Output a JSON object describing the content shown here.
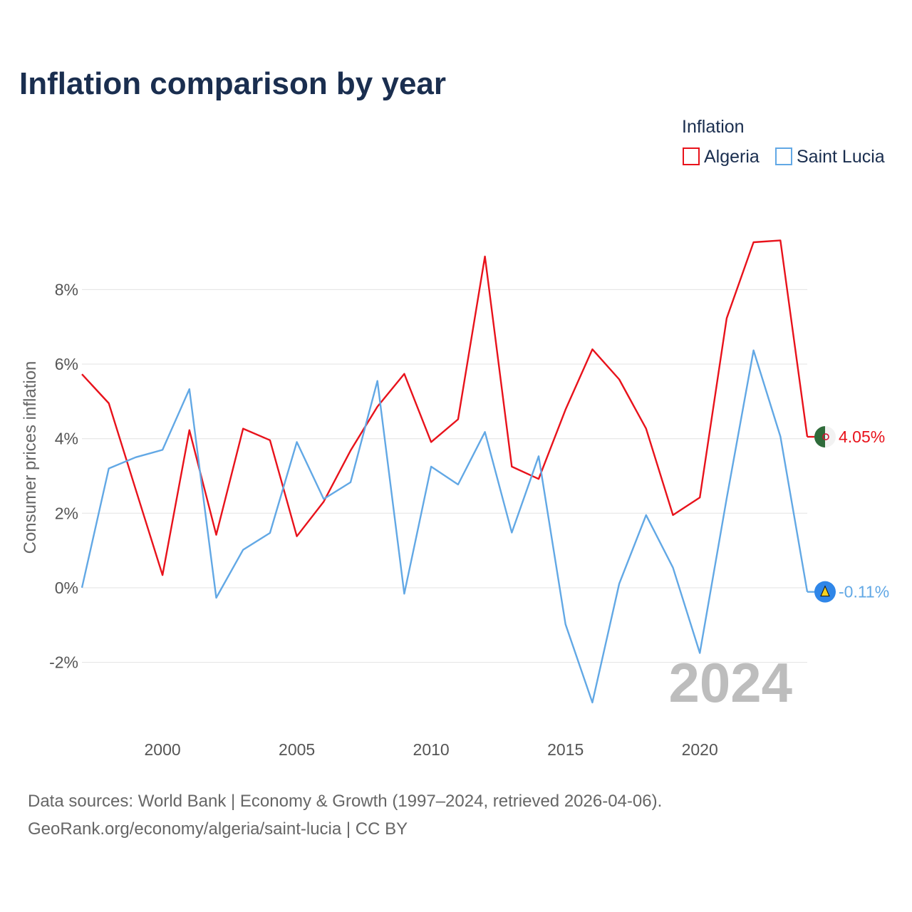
{
  "title": "Inflation comparison by year",
  "legend": {
    "title": "Inflation",
    "items": [
      {
        "label": "Algeria",
        "color": "#e8121b"
      },
      {
        "label": "Saint Lucia",
        "color": "#62a8e5"
      }
    ]
  },
  "year_marker": "2024",
  "end_labels": {
    "algeria": "4.05%",
    "saint_lucia": "-0.11%"
  },
  "footer": {
    "line1": "Data sources: World Bank | Economy & Growth (1997–2024, retrieved 2026-04-06).",
    "line2": "GeoRank.org/economy/algeria/saint-lucia | CC BY"
  },
  "chart_data": {
    "type": "line",
    "title": "Inflation comparison by year",
    "ylabel": "Consumer prices inflation",
    "xlabel": "",
    "x": [
      1997,
      1998,
      1999,
      2000,
      2001,
      2002,
      2003,
      2004,
      2005,
      2006,
      2007,
      2008,
      2009,
      2010,
      2011,
      2012,
      2013,
      2014,
      2015,
      2016,
      2017,
      2018,
      2019,
      2020,
      2021,
      2022,
      2023,
      2024
    ],
    "xlim": [
      1997,
      2024
    ],
    "ylim": [
      -3.5,
      9.5
    ],
    "xticks": [
      2000,
      2005,
      2010,
      2015,
      2020
    ],
    "yticks": [
      -2,
      0,
      2,
      4,
      6,
      8
    ],
    "ytick_labels": [
      "-2%",
      "0%",
      "2%",
      "4%",
      "6%",
      "8%"
    ],
    "series": [
      {
        "name": "Algeria",
        "color": "#e8121b",
        "values": [
          5.73,
          4.95,
          2.64,
          0.34,
          4.23,
          1.42,
          4.27,
          3.96,
          1.38,
          2.31,
          3.68,
          4.86,
          5.74,
          3.91,
          4.52,
          8.89,
          3.25,
          2.92,
          4.78,
          6.4,
          5.59,
          4.27,
          1.95,
          2.42,
          7.23,
          9.27,
          9.32,
          4.05
        ]
      },
      {
        "name": "Saint Lucia",
        "color": "#62a8e5",
        "values": [
          0.0,
          3.2,
          3.5,
          3.7,
          5.33,
          -0.27,
          1.02,
          1.47,
          3.91,
          2.38,
          2.83,
          5.55,
          -0.16,
          3.25,
          2.77,
          4.18,
          1.48,
          3.53,
          -0.98,
          -3.08,
          0.11,
          1.95,
          0.54,
          -1.75,
          2.4,
          6.37,
          4.06,
          -0.11
        ]
      }
    ]
  }
}
